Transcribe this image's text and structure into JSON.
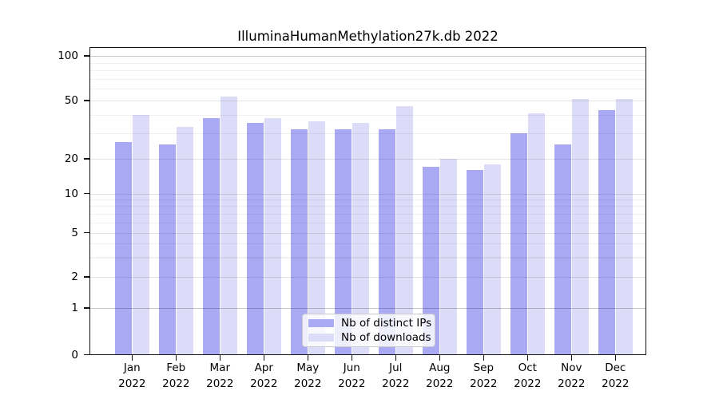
{
  "chart_data": {
    "type": "bar",
    "title": "IlluminaHumanMethylation27k.db 2022",
    "categories": [
      "Jan",
      "Feb",
      "Mar",
      "Apr",
      "May",
      "Jun",
      "Jul",
      "Aug",
      "Sep",
      "Oct",
      "Nov",
      "Dec"
    ],
    "category_year": "2022",
    "series": [
      {
        "name": "Nb of distinct IPs",
        "color": "#a9a9f4",
        "values": [
          26,
          25,
          38,
          35,
          32,
          32,
          32,
          17,
          16,
          30,
          25,
          43
        ]
      },
      {
        "name": "Nb of downloads",
        "color": "#dcdcf8",
        "values": [
          40,
          33,
          53,
          38,
          36,
          35,
          46,
          20,
          18,
          41,
          51,
          51
        ]
      }
    ],
    "y_axis": {
      "scale": "log-like",
      "ticks": [
        0,
        1,
        2,
        5,
        10,
        20,
        50,
        100
      ],
      "emphasized_gridlines": [
        1,
        100
      ],
      "minor_gridlines": [
        3,
        4,
        6,
        7,
        8,
        9,
        30,
        40,
        60,
        70,
        80,
        90
      ],
      "ylim": [
        0,
        115
      ]
    },
    "legend_position": "lower center",
    "grid": true
  },
  "colors": {
    "background": "#ffffff",
    "bar_distinct_ips": "#a9a9f4",
    "bar_downloads": "#dcdcf8",
    "axis": "#111111",
    "gridline_major": "rgba(0,0,0,0.10)",
    "gridline_emphasis": "rgba(0,0,0,0.22)",
    "gridline_minor": "rgba(0,0,0,0.055)",
    "legend_border": "#c9c9c9",
    "text": "#000000"
  }
}
